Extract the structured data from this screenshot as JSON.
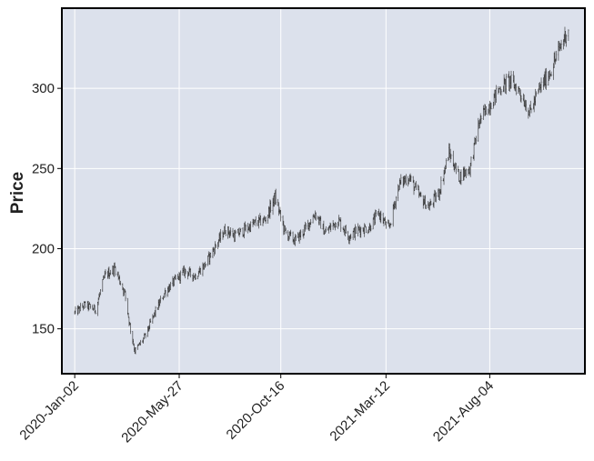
{
  "chart_data": {
    "type": "ohlc",
    "title": "",
    "xlabel": "",
    "ylabel": "Price",
    "ylim": [
      122,
      350
    ],
    "x_range": [
      "2019-12-15",
      "2021-12-15"
    ],
    "grid": true,
    "legend": "none",
    "colors": {
      "plot_background": "#dce1ec",
      "grid": "#ffffff",
      "frame": "#000000",
      "bars": "#2b2b2b",
      "text": "#222222"
    },
    "y_ticks": [
      150,
      200,
      250,
      300
    ],
    "y_tick_labels": [
      "150",
      "200",
      "250",
      "300"
    ],
    "x_ticks": [
      "2020-01-02",
      "2020-05-27",
      "2020-10-16",
      "2021-03-12",
      "2021-08-04"
    ],
    "x_tick_labels": [
      "2020-Jan-02",
      "2020-May-27",
      "2020-Oct-16",
      "2021-Mar-12",
      "2021-Aug-04"
    ],
    "series": [
      {
        "x": [
          "2020-01-02",
          "2020-01-16",
          "2020-01-31",
          "2020-02-13",
          "2020-02-27",
          "2020-03-12",
          "2020-03-19",
          "2020-03-26",
          "2020-04-09",
          "2020-04-23",
          "2020-05-07",
          "2020-05-21",
          "2020-06-04",
          "2020-06-18",
          "2020-07-02",
          "2020-07-16",
          "2020-07-30",
          "2020-08-13",
          "2020-08-27",
          "2020-09-10",
          "2020-09-24",
          "2020-10-08",
          "2020-10-22",
          "2020-11-05",
          "2020-11-19",
          "2020-12-03",
          "2020-12-17",
          "2021-01-04",
          "2021-01-19",
          "2021-02-02",
          "2021-02-16",
          "2021-03-02",
          "2021-03-16",
          "2021-03-30",
          "2021-04-13",
          "2021-04-27",
          "2021-05-11",
          "2021-05-25",
          "2021-06-08",
          "2021-06-22",
          "2021-07-07",
          "2021-07-21",
          "2021-08-04",
          "2021-08-18",
          "2021-09-01",
          "2021-09-15",
          "2021-09-29",
          "2021-10-13",
          "2021-10-27",
          "2021-11-10",
          "2021-11-22"
        ],
        "close": [
          160,
          165,
          162,
          183,
          188,
          172,
          152,
          136,
          145,
          160,
          173,
          180,
          186,
          183,
          190,
          201,
          212,
          208,
          212,
          216,
          218,
          232,
          210,
          205,
          212,
          222,
          210,
          218,
          208,
          212,
          213,
          222,
          212,
          240,
          245,
          233,
          226,
          235,
          260,
          245,
          250,
          280,
          290,
          300,
          305,
          298,
          285,
          300,
          310,
          325,
          338
        ]
      }
    ]
  }
}
